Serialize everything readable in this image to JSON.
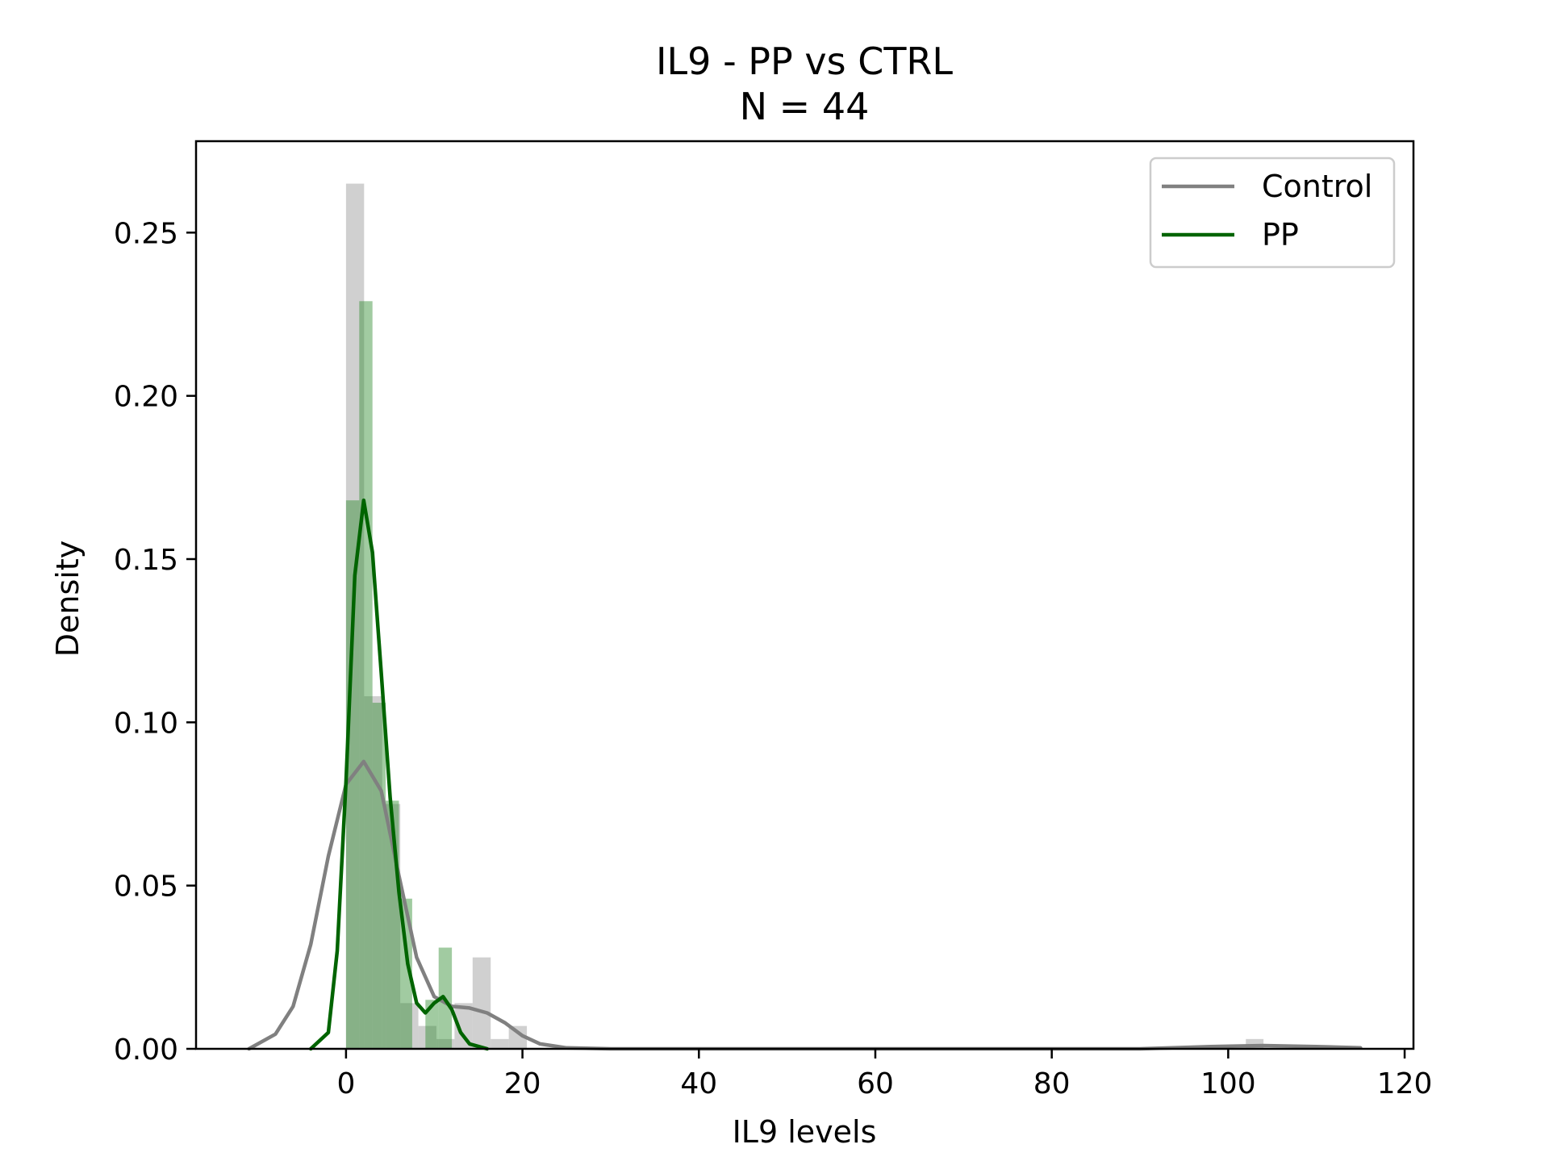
{
  "chart_data": {
    "type": "histogram_kde",
    "title": "IL9 - PP vs CTRL",
    "subtitle": "N = 44",
    "xlabel": "IL9 levels",
    "ylabel": "Density",
    "xlim": [
      -17,
      121
    ],
    "ylim": [
      0,
      0.278
    ],
    "xticks": [
      0,
      20,
      40,
      60,
      80,
      100,
      120
    ],
    "yticks": [
      0.0,
      0.05,
      0.1,
      0.15,
      0.2,
      0.25
    ],
    "ytick_labels": [
      "0.00",
      "0.05",
      "0.10",
      "0.15",
      "0.20",
      "0.25"
    ],
    "legend_position": "top-right",
    "series": [
      {
        "name": "Control",
        "color": "#808080",
        "hist_color": "#b0b0b0",
        "hist_opacity": 0.6,
        "hist_bins": [
          {
            "x0": 0.0,
            "x1": 2.05,
            "y": 0.265
          },
          {
            "x0": 2.05,
            "x1": 4.1,
            "y": 0.108
          },
          {
            "x0": 4.1,
            "x1": 6.15,
            "y": 0.075
          },
          {
            "x0": 6.15,
            "x1": 8.2,
            "y": 0.014
          },
          {
            "x0": 8.2,
            "x1": 10.25,
            "y": 0.007
          },
          {
            "x0": 10.25,
            "x1": 12.3,
            "y": 0.003
          },
          {
            "x0": 12.3,
            "x1": 14.35,
            "y": 0.014
          },
          {
            "x0": 14.35,
            "x1": 16.4,
            "y": 0.028
          },
          {
            "x0": 16.4,
            "x1": 18.45,
            "y": 0.003
          },
          {
            "x0": 18.45,
            "x1": 20.5,
            "y": 0.007
          },
          {
            "x0": 102.0,
            "x1": 104.0,
            "y": 0.003
          }
        ],
        "kde": [
          [
            -11,
            0.0
          ],
          [
            -8,
            0.0045
          ],
          [
            -6,
            0.013
          ],
          [
            -4,
            0.032
          ],
          [
            -2,
            0.059
          ],
          [
            0,
            0.081
          ],
          [
            2,
            0.088
          ],
          [
            4,
            0.079
          ],
          [
            6,
            0.053
          ],
          [
            8,
            0.028
          ],
          [
            10,
            0.016
          ],
          [
            12,
            0.013
          ],
          [
            14,
            0.0125
          ],
          [
            16,
            0.011
          ],
          [
            18,
            0.008
          ],
          [
            20,
            0.004
          ],
          [
            22,
            0.0015
          ],
          [
            25,
            0.0003
          ],
          [
            30,
            0.0
          ],
          [
            90,
            0.0
          ],
          [
            98,
            0.0007
          ],
          [
            104,
            0.001
          ],
          [
            110,
            0.0007
          ],
          [
            115,
            0.0003
          ]
        ]
      },
      {
        "name": "PP",
        "color": "#006400",
        "hist_color": "#2e8b2e",
        "hist_opacity": 0.45,
        "hist_bins": [
          {
            "x0": 0.0,
            "x1": 1.5,
            "y": 0.168
          },
          {
            "x0": 1.5,
            "x1": 3.0,
            "y": 0.229
          },
          {
            "x0": 3.0,
            "x1": 4.5,
            "y": 0.106
          },
          {
            "x0": 4.5,
            "x1": 6.0,
            "y": 0.076
          },
          {
            "x0": 6.0,
            "x1": 7.5,
            "y": 0.046
          },
          {
            "x0": 7.5,
            "x1": 9.0,
            "y": 0.0
          },
          {
            "x0": 9.0,
            "x1": 10.5,
            "y": 0.015
          },
          {
            "x0": 10.5,
            "x1": 12.0,
            "y": 0.031
          }
        ],
        "kde": [
          [
            -4,
            0.0
          ],
          [
            -2,
            0.005
          ],
          [
            -1,
            0.03
          ],
          [
            0,
            0.082
          ],
          [
            1,
            0.145
          ],
          [
            2,
            0.168
          ],
          [
            3,
            0.152
          ],
          [
            4,
            0.115
          ],
          [
            5,
            0.077
          ],
          [
            6,
            0.048
          ],
          [
            7,
            0.026
          ],
          [
            8,
            0.014
          ],
          [
            9,
            0.011
          ],
          [
            10,
            0.014
          ],
          [
            11,
            0.016
          ],
          [
            12,
            0.012
          ],
          [
            13,
            0.005
          ],
          [
            14,
            0.0015
          ],
          [
            16,
            0.0
          ]
        ]
      }
    ]
  }
}
